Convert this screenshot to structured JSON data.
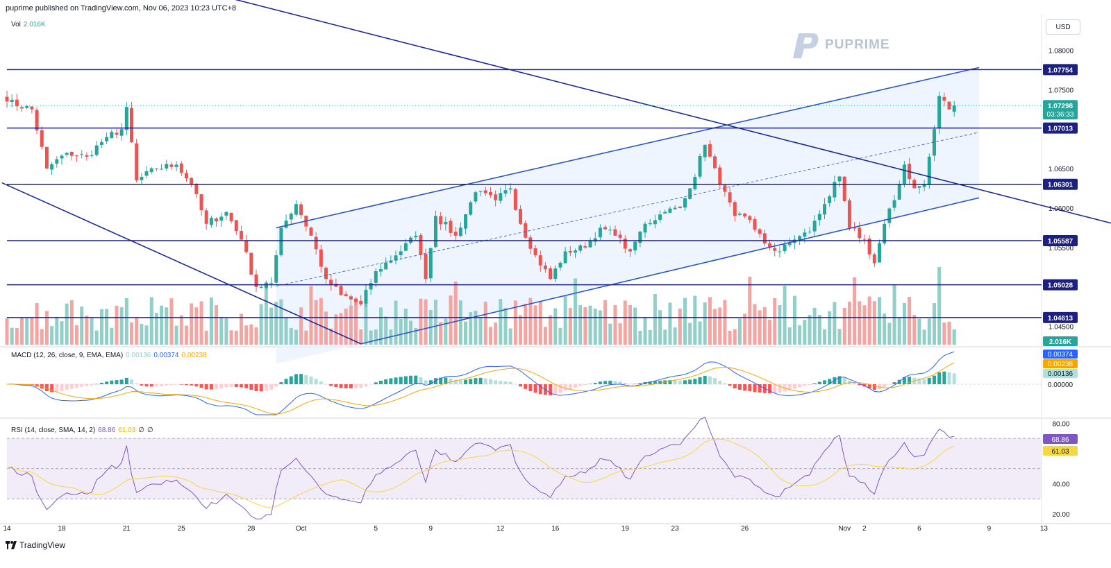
{
  "header": {
    "published": "puprime published on TradingView.com, Nov 06, 2023 10:23 UTC+8",
    "currency": "USD"
  },
  "watermark": {
    "brand": "PUPRIME",
    "color": "#b7c3d6",
    "icon": "puprime-logo-icon"
  },
  "footer": {
    "brand": "TradingView",
    "icon": "tradingview-logo-icon"
  },
  "volume_label": {
    "name": "Vol",
    "value": "2.016K"
  },
  "macd_label": {
    "name": "MACD (12, 26, close, 9, EMA, EMA)",
    "hist": "0.00136",
    "macd": "0.00374",
    "signal": "0.00238"
  },
  "rsi_label": {
    "name": "RSI (14, close, SMA, 14, 2)",
    "rsi": "68.86",
    "ma": "61.03",
    "extra1": "∅",
    "extra2": "∅"
  },
  "colors": {
    "up": "#26a69a",
    "down": "#ef5350",
    "up_vol": "#92cfc8",
    "down_vol": "#f4a4a1",
    "line": "#1a2aa0",
    "channel": "#2a55d0",
    "macd": "#2962ff",
    "signal": "#f7a600",
    "rsi": "#7e57c2",
    "rsi_ma": "#f5d742"
  },
  "chart_data": [
    {
      "type": "candlestick",
      "y_axis_ticks": [
        "1.08000",
        "1.07500",
        "1.06500",
        "1.06000",
        "1.05500",
        "1.04500"
      ],
      "ylim": [
        1.0426,
        1.0846
      ],
      "x_ticks": [
        {
          "label": "14",
          "idx": 0
        },
        {
          "label": "18",
          "idx": 11
        },
        {
          "label": "21",
          "idx": 24
        },
        {
          "label": "25",
          "idx": 35
        },
        {
          "label": "28",
          "idx": 49
        },
        {
          "label": "Oct",
          "idx": 59
        },
        {
          "label": "5",
          "idx": 74
        },
        {
          "label": "9",
          "idx": 85
        },
        {
          "label": "12",
          "idx": 99
        },
        {
          "label": "16",
          "idx": 110
        },
        {
          "label": "19",
          "idx": 124
        },
        {
          "label": "23",
          "idx": 134
        },
        {
          "label": "26",
          "idx": 148
        },
        {
          "label": "Nov",
          "idx": 168
        },
        {
          "label": "2",
          "idx": 172
        },
        {
          "label": "6",
          "idx": 183
        },
        {
          "label": "9",
          "idx": 197
        },
        {
          "label": "13",
          "idx": 208
        }
      ],
      "horizontal_levels": [
        {
          "value": 1.07754,
          "label": "1.07754"
        },
        {
          "value": 1.07013,
          "label": "1.07013"
        },
        {
          "value": 1.06301,
          "label": "1.06301"
        },
        {
          "value": 1.05587,
          "label": "1.05587"
        },
        {
          "value": 1.05028,
          "label": "1.05028"
        },
        {
          "value": 1.04613,
          "label": "1.04613"
        }
      ],
      "last_price": {
        "value": 1.07298,
        "label": "1.07298",
        "countdown": "03:36:33"
      },
      "volume_last": "2.016K",
      "anchors": [
        {
          "i": 0,
          "p": 1.0735
        },
        {
          "i": 5,
          "p": 1.0725
        },
        {
          "i": 8,
          "p": 1.065
        },
        {
          "i": 12,
          "p": 1.067
        },
        {
          "i": 16,
          "p": 1.0665
        },
        {
          "i": 20,
          "p": 1.069
        },
        {
          "i": 23,
          "p": 1.07
        },
        {
          "i": 24,
          "p": 1.0728
        },
        {
          "i": 26,
          "p": 1.0635
        },
        {
          "i": 30,
          "p": 1.065
        },
        {
          "i": 34,
          "p": 1.0655
        },
        {
          "i": 37,
          "p": 1.063
        },
        {
          "i": 40,
          "p": 1.058
        },
        {
          "i": 44,
          "p": 1.0595
        },
        {
          "i": 47,
          "p": 1.056
        },
        {
          "i": 50,
          "p": 1.05
        },
        {
          "i": 53,
          "p": 1.0505
        },
        {
          "i": 55,
          "p": 1.0575
        },
        {
          "i": 58,
          "p": 1.0605
        },
        {
          "i": 61,
          "p": 1.0565
        },
        {
          "i": 64,
          "p": 1.051
        },
        {
          "i": 67,
          "p": 1.049
        },
        {
          "i": 71,
          "p": 1.0478
        },
        {
          "i": 74,
          "p": 1.052
        },
        {
          "i": 78,
          "p": 1.054
        },
        {
          "i": 82,
          "p": 1.0565
        },
        {
          "i": 84,
          "p": 1.051
        },
        {
          "i": 86,
          "p": 1.059
        },
        {
          "i": 90,
          "p": 1.0565
        },
        {
          "i": 94,
          "p": 1.062
        },
        {
          "i": 98,
          "p": 1.061
        },
        {
          "i": 101,
          "p": 1.0625
        },
        {
          "i": 103,
          "p": 1.058
        },
        {
          "i": 106,
          "p": 1.054
        },
        {
          "i": 109,
          "p": 1.051
        },
        {
          "i": 112,
          "p": 1.0545
        },
        {
          "i": 116,
          "p": 1.055
        },
        {
          "i": 119,
          "p": 1.0575
        },
        {
          "i": 122,
          "p": 1.0565
        },
        {
          "i": 125,
          "p": 1.0545
        },
        {
          "i": 128,
          "p": 1.058
        },
        {
          "i": 132,
          "p": 1.0595
        },
        {
          "i": 135,
          "p": 1.06
        },
        {
          "i": 137,
          "p": 1.0625
        },
        {
          "i": 140,
          "p": 1.068
        },
        {
          "i": 143,
          "p": 1.063
        },
        {
          "i": 146,
          "p": 1.059
        },
        {
          "i": 149,
          "p": 1.0585
        },
        {
          "i": 152,
          "p": 1.0555
        },
        {
          "i": 155,
          "p": 1.0545
        },
        {
          "i": 158,
          "p": 1.056
        },
        {
          "i": 161,
          "p": 1.057
        },
        {
          "i": 164,
          "p": 1.0605
        },
        {
          "i": 167,
          "p": 1.064
        },
        {
          "i": 169,
          "p": 1.0575
        },
        {
          "i": 172,
          "p": 1.056
        },
        {
          "i": 174,
          "p": 1.053
        },
        {
          "i": 176,
          "p": 1.058
        },
        {
          "i": 178,
          "p": 1.061
        },
        {
          "i": 180,
          "p": 1.0655
        },
        {
          "i": 182,
          "p": 1.0625
        },
        {
          "i": 184,
          "p": 1.063
        },
        {
          "i": 186,
          "p": 1.07
        },
        {
          "i": 187,
          "p": 1.0742
        },
        {
          "i": 189,
          "p": 1.0725
        },
        {
          "i": 190,
          "p": 1.073
        }
      ],
      "trendlines": [
        {
          "from": {
            "i": -1,
            "p": 1.0632
          },
          "to": {
            "i": 71,
            "p": 1.0428
          },
          "style": "solid"
        },
        {
          "from": {
            "i": 36,
            "p": 1.088
          },
          "to": {
            "i": 222,
            "p": 1.058
          },
          "style": "solid"
        },
        {
          "from": {
            "i": 71,
            "p": 1.0428
          },
          "to": {
            "i": 195,
            "p": 1.0613
          },
          "style": "solid"
        },
        {
          "from": {
            "i": 54,
            "p": 1.0575
          },
          "to": {
            "i": 195,
            "p": 1.0778
          },
          "style": "solid"
        },
        {
          "from": {
            "i": 54,
            "p": 1.0501
          },
          "to": {
            "i": 195,
            "p": 1.0696
          },
          "style": "dashed"
        }
      ]
    },
    {
      "type": "macd",
      "series": [
        {
          "name": "histogram",
          "last": "0.00136"
        },
        {
          "name": "macd",
          "last": "0.00374"
        },
        {
          "name": "signal",
          "last": "0.00238"
        }
      ],
      "y_axis_ticks": [
        "0.00000"
      ]
    },
    {
      "type": "rsi",
      "y_axis_ticks": [
        "80.00",
        "40.00",
        "20.00"
      ],
      "levels": [
        70,
        50,
        30
      ],
      "ylim": [
        15,
        82
      ],
      "series": [
        {
          "name": "rsi",
          "last": "68.86"
        },
        {
          "name": "rsi_ma",
          "last": "61.03"
        }
      ]
    }
  ]
}
